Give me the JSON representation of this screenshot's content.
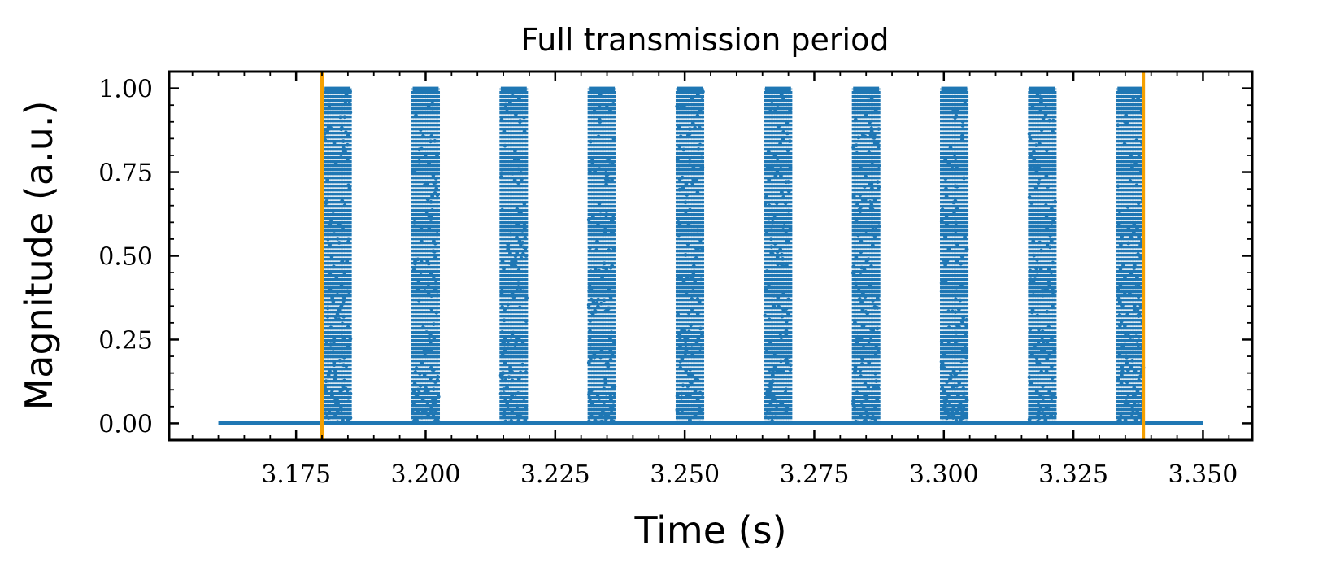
{
  "chart_data": {
    "type": "scatter",
    "title": "Full transmission period",
    "xlabel": "Time (s)",
    "ylabel": "Magnitude (a.u.)",
    "xlim": [
      3.1505,
      3.3595
    ],
    "ylim": [
      -0.05,
      1.05
    ],
    "x_ticks": [
      3.175,
      3.2,
      3.225,
      3.25,
      3.275,
      3.3,
      3.325,
      3.35
    ],
    "x_tick_labels": [
      "3.175",
      "3.200",
      "3.225",
      "3.250",
      "3.275",
      "3.300",
      "3.325",
      "3.350"
    ],
    "y_ticks": [
      0,
      0.25,
      0.5,
      0.75,
      1
    ],
    "y_tick_labels": [
      "0.00",
      "0.25",
      "0.50",
      "0.75",
      "1.00"
    ],
    "grid": false,
    "series": [
      {
        "color": "#1f77b4",
        "baseline": {
          "x_start": 3.16,
          "x_end": 3.35,
          "y": 0
        },
        "bursts": [
          {
            "x_start": 3.1805,
            "x_end": 3.1855,
            "y_min": 0,
            "y_max": 1
          },
          {
            "x_start": 3.1975,
            "x_end": 3.2025,
            "y_min": 0,
            "y_max": 1
          },
          {
            "x_start": 3.2145,
            "x_end": 3.2195,
            "y_min": 0,
            "y_max": 1
          },
          {
            "x_start": 3.2315,
            "x_end": 3.2365,
            "y_min": 0,
            "y_max": 1
          },
          {
            "x_start": 3.2485,
            "x_end": 3.2535,
            "y_min": 0,
            "y_max": 1
          },
          {
            "x_start": 3.2655,
            "x_end": 3.2705,
            "y_min": 0,
            "y_max": 1
          },
          {
            "x_start": 3.2825,
            "x_end": 3.2875,
            "y_min": 0,
            "y_max": 1
          },
          {
            "x_start": 3.2995,
            "x_end": 3.3045,
            "y_min": 0,
            "y_max": 1
          },
          {
            "x_start": 3.3165,
            "x_end": 3.3215,
            "y_min": 0,
            "y_max": 1
          },
          {
            "x_start": 3.3335,
            "x_end": 3.3385,
            "y_min": 0,
            "y_max": 1
          }
        ]
      }
    ],
    "vertical_lines": [
      {
        "x": 3.18,
        "color": "#f5a000"
      },
      {
        "x": 3.3385,
        "color": "#f5a000"
      }
    ]
  }
}
